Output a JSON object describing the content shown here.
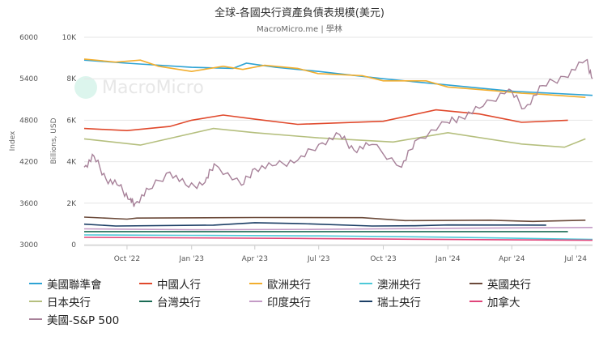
{
  "title": "全球-各國央行資產負債表規模(美元)",
  "subtitle": "MacroMicro.me | 學林",
  "watermark": "MacroMicro",
  "chart_data": {
    "type": "line",
    "title": "全球-各國央行資產負債表規模(美元)",
    "ylabel_left": "Index",
    "ylabel_right": "Billions, USD",
    "y_index_ticks": [
      "6000",
      "5400",
      "4800",
      "4200",
      "3600",
      "3000"
    ],
    "y_index_range": [
      3000,
      6000
    ],
    "y_usd_ticks": [
      "10K",
      "8K",
      "6K",
      "4K",
      "2K",
      "0"
    ],
    "y_usd_range": [
      0,
      10000
    ],
    "x_ticks": [
      "Oct '22",
      "Jan '23",
      "Apr '23",
      "Jul '23",
      "Oct '23",
      "Jan '24",
      "Apr '24",
      "Jul '24"
    ],
    "x_range": [
      "2022-08-01",
      "2024-07-25"
    ],
    "grid": true,
    "legend": "bottom",
    "series": [
      {
        "name": "美國聯準會",
        "color": "#2ea3d4",
        "axis": "usd",
        "points": [
          [
            "2022-08-01",
            8900
          ],
          [
            "2022-10-01",
            8750
          ],
          [
            "2023-01-01",
            8550
          ],
          [
            "2023-03-01",
            8500
          ],
          [
            "2023-03-20",
            8750
          ],
          [
            "2023-05-01",
            8550
          ],
          [
            "2023-07-01",
            8350
          ],
          [
            "2023-10-01",
            8000
          ],
          [
            "2024-01-01",
            7700
          ],
          [
            "2024-04-01",
            7400
          ],
          [
            "2024-07-25",
            7200
          ]
        ]
      },
      {
        "name": "中國人行",
        "color": "#e0492c",
        "axis": "usd",
        "points": [
          [
            "2022-08-01",
            5600
          ],
          [
            "2022-10-01",
            5500
          ],
          [
            "2022-12-01",
            5700
          ],
          [
            "2023-01-01",
            6000
          ],
          [
            "2023-02-15",
            6250
          ],
          [
            "2023-04-01",
            6050
          ],
          [
            "2023-06-01",
            5800
          ],
          [
            "2023-10-01",
            5950
          ],
          [
            "2023-12-15",
            6500
          ],
          [
            "2024-02-15",
            6300
          ],
          [
            "2024-04-15",
            5900
          ],
          [
            "2024-06-20",
            6000
          ]
        ]
      },
      {
        "name": "歐洲央行",
        "color": "#f2ae2e",
        "axis": "usd",
        "points": [
          [
            "2022-08-01",
            8950
          ],
          [
            "2022-09-15",
            8800
          ],
          [
            "2022-10-20",
            8900
          ],
          [
            "2022-11-15",
            8600
          ],
          [
            "2023-01-01",
            8350
          ],
          [
            "2023-02-15",
            8600
          ],
          [
            "2023-03-15",
            8450
          ],
          [
            "2023-04-15",
            8650
          ],
          [
            "2023-06-01",
            8500
          ],
          [
            "2023-06-30",
            8250
          ],
          [
            "2023-09-01",
            8150
          ],
          [
            "2023-10-01",
            7900
          ],
          [
            "2023-12-01",
            7900
          ],
          [
            "2024-01-01",
            7600
          ],
          [
            "2024-03-15",
            7400
          ],
          [
            "2024-04-15",
            7300
          ],
          [
            "2024-05-15",
            7250
          ],
          [
            "2024-07-15",
            7100
          ]
        ]
      },
      {
        "name": "澳洲央行",
        "color": "#4dc9d8",
        "axis": "usd",
        "points": [
          [
            "2022-08-01",
            470
          ],
          [
            "2023-01-01",
            450
          ],
          [
            "2023-07-01",
            420
          ],
          [
            "2024-01-01",
            360
          ],
          [
            "2024-07-25",
            250
          ]
        ]
      },
      {
        "name": "英國央行",
        "color": "#6b4a3a",
        "axis": "usd",
        "points": [
          [
            "2022-08-01",
            1330
          ],
          [
            "2022-10-01",
            1230
          ],
          [
            "2022-10-15",
            1280
          ],
          [
            "2023-04-01",
            1310
          ],
          [
            "2023-09-01",
            1300
          ],
          [
            "2023-11-01",
            1160
          ],
          [
            "2024-03-01",
            1180
          ],
          [
            "2024-05-01",
            1120
          ],
          [
            "2024-07-15",
            1180
          ]
        ]
      },
      {
        "name": "日本央行",
        "color": "#b5bf7e",
        "axis": "usd",
        "points": [
          [
            "2022-08-01",
            5100
          ],
          [
            "2022-10-20",
            4800
          ],
          [
            "2023-02-01",
            5600
          ],
          [
            "2023-04-01",
            5400
          ],
          [
            "2023-07-01",
            5150
          ],
          [
            "2023-10-15",
            4950
          ],
          [
            "2024-01-01",
            5400
          ],
          [
            "2024-04-15",
            4850
          ],
          [
            "2024-06-15",
            4700
          ],
          [
            "2024-07-15",
            5100
          ]
        ]
      },
      {
        "name": "台灣央行",
        "color": "#1a6b54",
        "axis": "usd",
        "points": [
          [
            "2022-08-01",
            630
          ],
          [
            "2024-06-20",
            630
          ]
        ]
      },
      {
        "name": "印度央行",
        "color": "#c49bc6",
        "axis": "usd",
        "points": [
          [
            "2022-08-01",
            760
          ],
          [
            "2023-01-01",
            720
          ],
          [
            "2023-07-01",
            740
          ],
          [
            "2024-01-01",
            790
          ],
          [
            "2024-07-25",
            830
          ]
        ]
      },
      {
        "name": "瑞士央行",
        "color": "#1c3f66",
        "axis": "usd",
        "points": [
          [
            "2022-08-01",
            990
          ],
          [
            "2022-09-15",
            900
          ],
          [
            "2023-02-01",
            940
          ],
          [
            "2023-04-01",
            1060
          ],
          [
            "2023-06-01",
            1020
          ],
          [
            "2023-09-15",
            900
          ],
          [
            "2023-11-15",
            910
          ],
          [
            "2024-01-01",
            950
          ],
          [
            "2024-05-20",
            940
          ]
        ]
      },
      {
        "name": "加拿大",
        "color": "#e0457a",
        "axis": "usd",
        "points": [
          [
            "2022-08-01",
            350
          ],
          [
            "2023-06-01",
            300
          ],
          [
            "2024-01-01",
            250
          ],
          [
            "2024-07-25",
            210
          ]
        ]
      },
      {
        "name": "美國-S&P 500",
        "color": "#a78199",
        "axis": "index",
        "points": [
          [
            "2022-08-01",
            4120
          ],
          [
            "2022-08-15",
            4280
          ],
          [
            "2022-09-01",
            3950
          ],
          [
            "2022-09-20",
            3850
          ],
          [
            "2022-10-05",
            3650
          ],
          [
            "2022-10-12",
            3590
          ],
          [
            "2022-11-01",
            3800
          ],
          [
            "2022-12-01",
            4050
          ],
          [
            "2022-12-28",
            3830
          ],
          [
            "2023-01-20",
            3900
          ],
          [
            "2023-02-02",
            4170
          ],
          [
            "2023-03-13",
            3860
          ],
          [
            "2023-04-01",
            4100
          ],
          [
            "2023-05-01",
            4150
          ],
          [
            "2023-06-01",
            4220
          ],
          [
            "2023-07-01",
            4450
          ],
          [
            "2023-07-31",
            4590
          ],
          [
            "2023-08-20",
            4370
          ],
          [
            "2023-09-15",
            4450
          ],
          [
            "2023-10-27",
            4120
          ],
          [
            "2023-11-15",
            4500
          ],
          [
            "2023-12-31",
            4770
          ],
          [
            "2024-01-20",
            4840
          ],
          [
            "2024-02-20",
            5000
          ],
          [
            "2024-03-28",
            5250
          ],
          [
            "2024-04-19",
            4970
          ],
          [
            "2024-05-15",
            5300
          ],
          [
            "2024-06-15",
            5430
          ],
          [
            "2024-07-16",
            5670
          ],
          [
            "2024-07-25",
            5400
          ]
        ]
      }
    ]
  }
}
